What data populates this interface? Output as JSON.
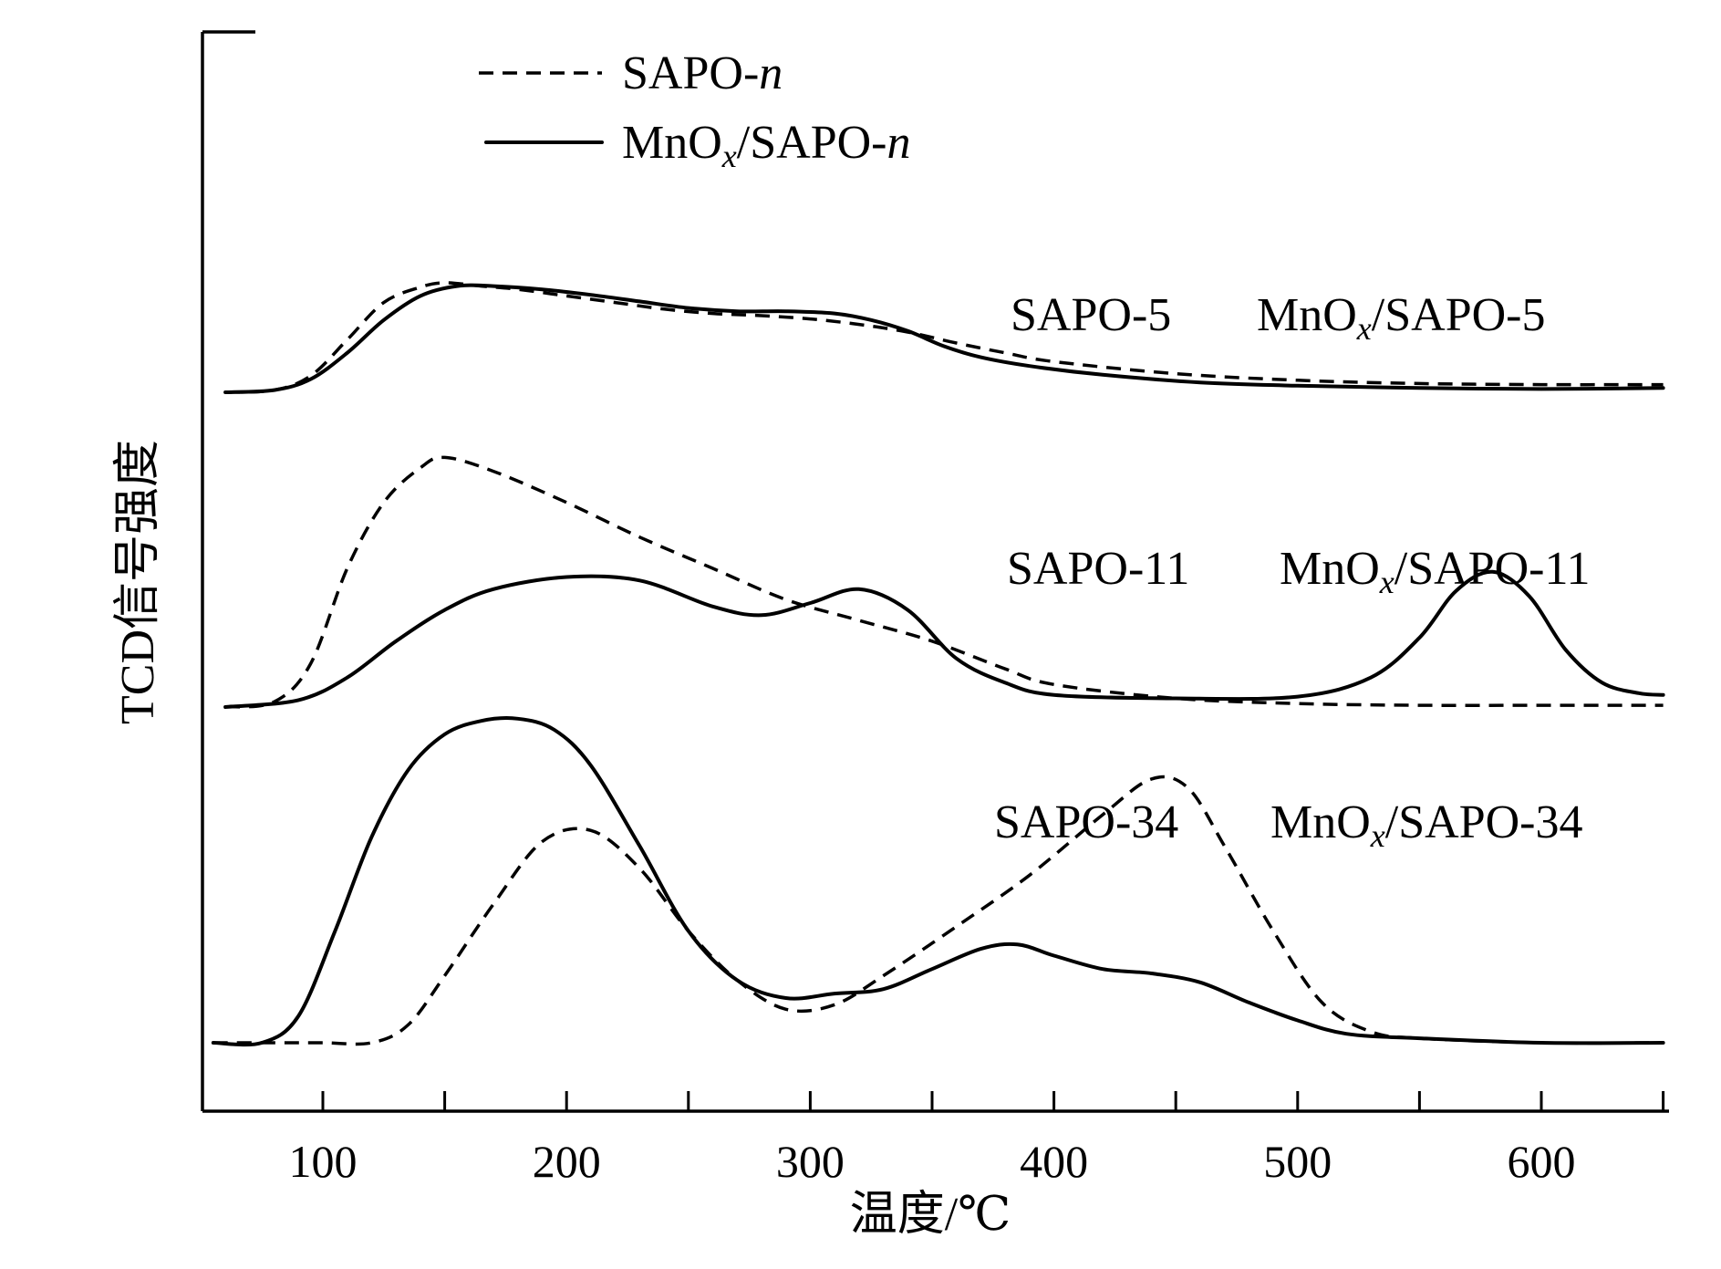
{
  "chart_data": {
    "type": "line",
    "xlabel": "温度/℃",
    "ylabel": "TCD信号强度",
    "xlim": [
      50,
      650
    ],
    "x_ticks": [
      100,
      200,
      300,
      400,
      500,
      600
    ],
    "x_minor_ticks": [
      150,
      250,
      350,
      450,
      550,
      650
    ],
    "y_ticks_shown": false,
    "grid": false,
    "legend_position": "top-left",
    "legend": [
      {
        "label": "SAPO-",
        "italic_suffix": "n",
        "style": "dashed"
      },
      {
        "label": "MnO",
        "subscript": "x",
        "label_tail": "/SAPO-",
        "italic_suffix": "n",
        "style": "solid"
      }
    ],
    "groups": [
      {
        "support_label": "SAPO-5",
        "loaded_label": {
          "prefix": "MnO",
          "subscript": "x",
          "suffix": "/SAPO-5"
        },
        "series": [
          {
            "style": "dashed",
            "x": [
              60,
              80,
              95,
              110,
              125,
              140,
              150,
              165,
              180,
              200,
              220,
              240,
              260,
              280,
              300,
              320,
              340,
              360,
              380,
              400,
              450,
              500,
              550,
              600,
              650
            ],
            "y": [
              0.0,
              0.02,
              0.15,
              0.48,
              0.82,
              0.96,
              1.0,
              0.97,
              0.94,
              0.88,
              0.82,
              0.76,
              0.72,
              0.7,
              0.67,
              0.62,
              0.55,
              0.45,
              0.36,
              0.28,
              0.17,
              0.11,
              0.08,
              0.07,
              0.07
            ]
          },
          {
            "style": "solid",
            "x": [
              60,
              80,
              95,
              110,
              125,
              140,
              155,
              170,
              190,
              210,
              230,
              250,
              270,
              290,
              310,
              325,
              340,
              355,
              370,
              390,
              420,
              460,
              500,
              550,
              600,
              650
            ],
            "y": [
              0.0,
              0.02,
              0.12,
              0.36,
              0.66,
              0.88,
              0.97,
              0.97,
              0.94,
              0.89,
              0.83,
              0.77,
              0.74,
              0.74,
              0.72,
              0.66,
              0.56,
              0.42,
              0.32,
              0.24,
              0.16,
              0.09,
              0.06,
              0.04,
              0.03,
              0.04
            ]
          }
        ]
      },
      {
        "support_label": "SAPO-11",
        "loaded_label": {
          "prefix": "MnO",
          "subscript": "x",
          "suffix": "/SAPO-11"
        },
        "series": [
          {
            "style": "dashed",
            "x": [
              60,
              80,
              95,
              110,
              125,
              140,
              150,
              170,
              200,
              230,
              260,
              290,
              320,
              350,
              380,
              400,
              450,
              500,
              550,
              600,
              650
            ],
            "y": [
              0.0,
              0.03,
              0.25,
              0.8,
              1.18,
              1.38,
              1.44,
              1.36,
              1.18,
              0.98,
              0.8,
              0.62,
              0.5,
              0.38,
              0.22,
              0.13,
              0.05,
              0.02,
              0.01,
              0.01,
              0.01
            ]
          },
          {
            "style": "solid",
            "x": [
              60,
              90,
              110,
              130,
              150,
              170,
              200,
              230,
              260,
              280,
              300,
              320,
              340,
              360,
              380,
              400,
              450,
              500,
              530,
              550,
              565,
              580,
              595,
              610,
              625,
              640,
              650
            ],
            "y": [
              0.0,
              0.04,
              0.17,
              0.38,
              0.56,
              0.68,
              0.75,
              0.73,
              0.58,
              0.53,
              0.6,
              0.68,
              0.56,
              0.28,
              0.14,
              0.07,
              0.05,
              0.06,
              0.17,
              0.4,
              0.67,
              0.78,
              0.64,
              0.33,
              0.14,
              0.08,
              0.07
            ]
          }
        ]
      },
      {
        "support_label": "SAPO-34",
        "loaded_label": {
          "prefix": "MnO",
          "subscript": "x",
          "suffix": "/SAPO-34"
        },
        "series": [
          {
            "style": "dashed",
            "x": [
              55,
              80,
              100,
              120,
              135,
              150,
              170,
              190,
              210,
              230,
              250,
              270,
              290,
              310,
              330,
              360,
              390,
              420,
              440,
              455,
              470,
              490,
              510,
              530,
              550,
              600,
              650
            ],
            "y": [
              0.0,
              0.0,
              0.0,
              0.0,
              0.08,
              0.3,
              0.62,
              0.9,
              0.95,
              0.78,
              0.5,
              0.28,
              0.15,
              0.17,
              0.3,
              0.52,
              0.75,
              1.02,
              1.18,
              1.14,
              0.88,
              0.5,
              0.18,
              0.05,
              0.02,
              0.0,
              0.0
            ]
          },
          {
            "style": "solid",
            "x": [
              55,
              75,
              90,
              105,
              120,
              135,
              150,
              165,
              180,
              195,
              210,
              230,
              250,
              270,
              290,
              310,
              330,
              350,
              370,
              385,
              400,
              420,
              440,
              460,
              480,
              500,
              520,
              550,
              600,
              650
            ],
            "y": [
              0.0,
              0.0,
              0.12,
              0.5,
              0.92,
              1.22,
              1.38,
              1.44,
              1.45,
              1.4,
              1.24,
              0.88,
              0.5,
              0.28,
              0.2,
              0.22,
              0.24,
              0.33,
              0.42,
              0.44,
              0.39,
              0.33,
              0.31,
              0.27,
              0.18,
              0.1,
              0.04,
              0.02,
              0.0,
              0.0
            ]
          }
        ]
      }
    ]
  }
}
